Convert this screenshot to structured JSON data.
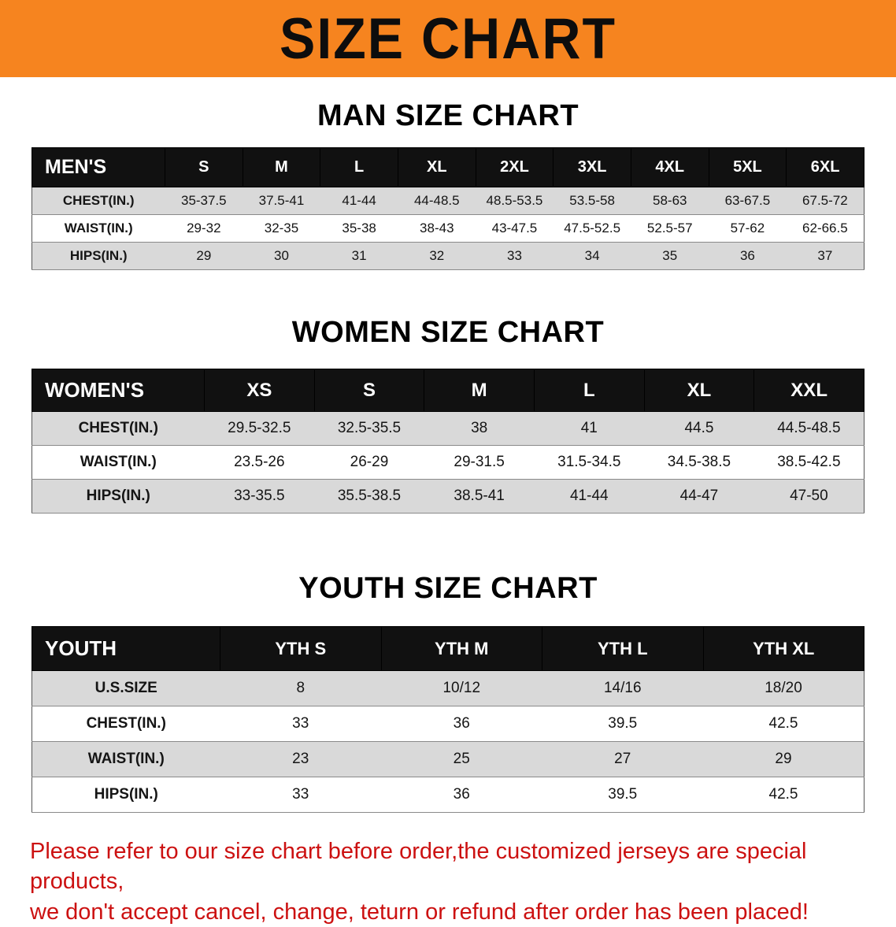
{
  "banner": {
    "title": "SIZE CHART"
  },
  "colors": {
    "banner_bg": "#f6841f",
    "footer_text": "#cc1111",
    "header_bar": "#111111",
    "row_shade": "#d9d9d9"
  },
  "sections": [
    {
      "heading": "MAN SIZE CHART",
      "table": {
        "header": [
          "MEN'S",
          "S",
          "M",
          "L",
          "XL",
          "2XL",
          "3XL",
          "4XL",
          "5XL",
          "6XL"
        ],
        "rows": [
          [
            "CHEST(IN.)",
            "35-37.5",
            "37.5-41",
            "41-44",
            "44-48.5",
            "48.5-53.5",
            "53.5-58",
            "58-63",
            "63-67.5",
            "67.5-72"
          ],
          [
            "WAIST(IN.)",
            "29-32",
            "32-35",
            "35-38",
            "38-43",
            "43-47.5",
            "47.5-52.5",
            "52.5-57",
            "57-62",
            "62-66.5"
          ],
          [
            "HIPS(IN.)",
            "29",
            "30",
            "31",
            "32",
            "33",
            "34",
            "35",
            "36",
            "37"
          ]
        ]
      }
    },
    {
      "heading": "WOMEN SIZE CHART",
      "table": {
        "header": [
          "WOMEN'S",
          "XS",
          "S",
          "M",
          "L",
          "XL",
          "XXL"
        ],
        "rows": [
          [
            "CHEST(IN.)",
            "29.5-32.5",
            "32.5-35.5",
            "38",
            "41",
            "44.5",
            "44.5-48.5"
          ],
          [
            "WAIST(IN.)",
            "23.5-26",
            "26-29",
            "29-31.5",
            "31.5-34.5",
            "34.5-38.5",
            "38.5-42.5"
          ],
          [
            "HIPS(IN.)",
            "33-35.5",
            "35.5-38.5",
            "38.5-41",
            "41-44",
            "44-47",
            "47-50"
          ]
        ]
      }
    },
    {
      "heading": "YOUTH SIZE CHART",
      "table": {
        "header": [
          "YOUTH",
          "YTH S",
          "YTH M",
          "YTH L",
          "YTH XL"
        ],
        "rows": [
          [
            "U.S.SIZE",
            "8",
            "10/12",
            "14/16",
            "18/20"
          ],
          [
            "CHEST(IN.)",
            "33",
            "36",
            "39.5",
            "42.5"
          ],
          [
            "WAIST(IN.)",
            "23",
            "25",
            "27",
            "29"
          ],
          [
            "HIPS(IN.)",
            "33",
            "36",
            "39.5",
            "42.5"
          ]
        ]
      }
    }
  ],
  "footer": {
    "line1": "Please refer to our size chart before order,the customized jerseys are special products,",
    "line2": "we don't accept cancel, change, teturn or refund after order has been placed!"
  }
}
